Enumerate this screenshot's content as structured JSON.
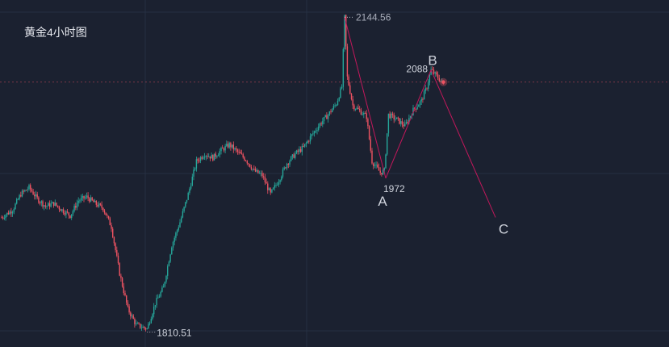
{
  "chart_data": {
    "type": "candlestick",
    "title": "黄金4小时图",
    "xlabel": "",
    "ylabel": "",
    "ylim": [
      1805,
      2150
    ],
    "grid": true,
    "colors": {
      "up": "#26a69a",
      "down": "#ef5362",
      "wave_line": "#c2185b",
      "background": "#1b2130",
      "grid": "#263042",
      "label": "#cfd3dc",
      "current_price_line": "#ef5362"
    },
    "price_labels": [
      {
        "text": "2144.56",
        "value": 2144.56
      },
      {
        "text": "1810.51",
        "value": 1810.51
      },
      {
        "text": "1972",
        "value": 1972
      },
      {
        "text": "2088",
        "value": 2088
      }
    ],
    "wave_labels": [
      "A",
      "B",
      "C"
    ],
    "wave_points": [
      {
        "label": "",
        "bar": 250,
        "value": 2144.56
      },
      {
        "label": "A",
        "bar": 280,
        "value": 1972
      },
      {
        "label": "B",
        "bar": 313,
        "value": 2088
      },
      {
        "label": "C",
        "bar": 360,
        "value": 1930
      }
    ],
    "current_price": 2075,
    "path": [
      [
        0,
        1930
      ],
      [
        8,
        1938
      ],
      [
        14,
        1955
      ],
      [
        20,
        1962
      ],
      [
        26,
        1950
      ],
      [
        32,
        1942
      ],
      [
        38,
        1945
      ],
      [
        44,
        1938
      ],
      [
        50,
        1932
      ],
      [
        56,
        1948
      ],
      [
        62,
        1952
      ],
      [
        68,
        1945
      ],
      [
        74,
        1940
      ],
      [
        80,
        1920
      ],
      [
        86,
        1870
      ],
      [
        92,
        1832
      ],
      [
        98,
        1815
      ],
      [
        106,
        1810.51
      ],
      [
        112,
        1838
      ],
      [
        118,
        1855
      ],
      [
        124,
        1900
      ],
      [
        130,
        1925
      ],
      [
        136,
        1955
      ],
      [
        142,
        1990
      ],
      [
        148,
        1998
      ],
      [
        154,
        1994
      ],
      [
        160,
        2002
      ],
      [
        166,
        2008
      ],
      [
        172,
        2000
      ],
      [
        178,
        1992
      ],
      [
        184,
        1980
      ],
      [
        190,
        1975
      ],
      [
        196,
        1955
      ],
      [
        202,
        1970
      ],
      [
        208,
        1988
      ],
      [
        214,
        1998
      ],
      [
        220,
        2005
      ],
      [
        226,
        2018
      ],
      [
        232,
        2030
      ],
      [
        238,
        2040
      ],
      [
        244,
        2052
      ],
      [
        248,
        2070
      ],
      [
        250,
        2144.56
      ],
      [
        252,
        2080
      ],
      [
        256,
        2050
      ],
      [
        262,
        2043
      ],
      [
        266,
        2038
      ],
      [
        270,
        1990
      ],
      [
        276,
        1978
      ],
      [
        279,
        1980
      ],
      [
        282,
        2040
      ],
      [
        288,
        2035
      ],
      [
        294,
        2028
      ],
      [
        300,
        2045
      ],
      [
        306,
        2055
      ],
      [
        310,
        2070
      ],
      [
        313,
        2088
      ],
      [
        318,
        2080
      ],
      [
        322,
        2073
      ]
    ]
  }
}
